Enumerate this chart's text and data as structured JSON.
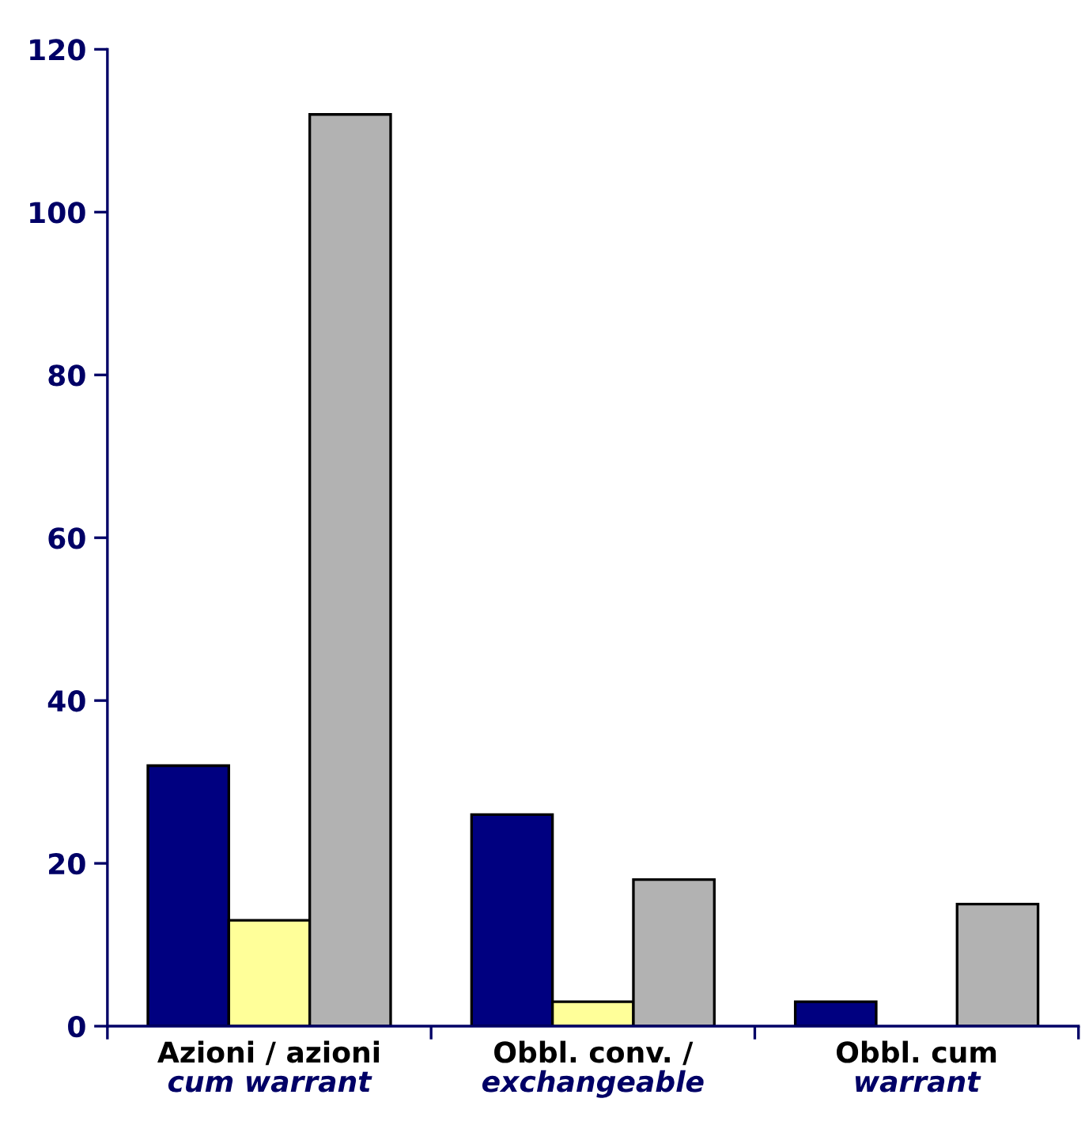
{
  "chart_data": {
    "type": "bar",
    "categories": [
      "Azioni / azioni\ncum warrant",
      "Obbl. conv. /\nexchangeable",
      "Obbl. cum\nwarrant"
    ],
    "series": [
      {
        "color": "#000080",
        "values": [
          32,
          26,
          3
        ]
      },
      {
        "color": "#ffff99",
        "values": [
          13,
          3,
          null
        ]
      },
      {
        "color": "#b2b2b2",
        "values": [
          112,
          18,
          15
        ]
      }
    ],
    "ylim": [
      0,
      120
    ],
    "yticks": [
      0,
      20,
      40,
      60,
      80,
      100,
      120
    ],
    "grid": false,
    "legend": false
  }
}
